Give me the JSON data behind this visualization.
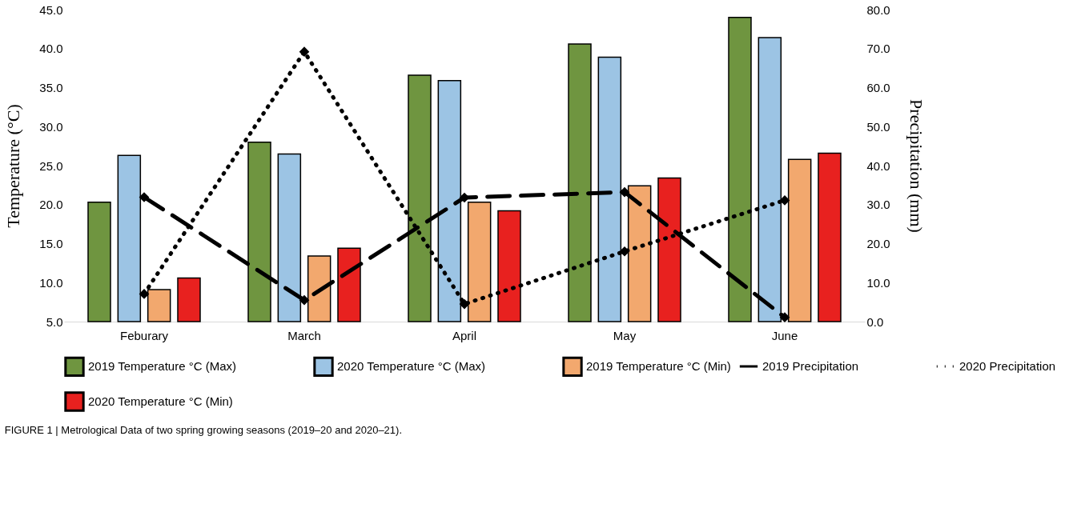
{
  "chart_data": {
    "type": "bar",
    "ylabel": "Temperature (°C)",
    "y2label": "Precipitation (mm)",
    "categories": [
      "Feburary",
      "March",
      "April",
      "May",
      "June"
    ],
    "series": [
      {
        "name": "2019 Temperature °C (Max)",
        "color": "#6f9540",
        "values": [
          20.3,
          28.0,
          36.6,
          40.6,
          44.0
        ]
      },
      {
        "name": "2020 Temperature °C (Max)",
        "color": "#9cc4e4",
        "values": [
          26.3,
          26.5,
          35.9,
          38.9,
          41.4
        ]
      },
      {
        "name": "2019 Temperature °C (Min)",
        "color": "#f2a86e",
        "values": [
          9.1,
          13.4,
          20.3,
          22.4,
          25.8
        ]
      },
      {
        "name": "2020 Temperature °C (Min)",
        "color": "#e8211f",
        "values": [
          10.6,
          14.4,
          19.2,
          23.4,
          26.6
        ]
      },
      {
        "name": "2019 Precipitation",
        "type": "line",
        "axis": "y2",
        "color": "#000000",
        "line_style": "dashed",
        "marker": "diamond",
        "values": [
          31.9,
          5.5,
          31.8,
          33.2,
          1.1
        ]
      },
      {
        "name": "2020 Precipitation",
        "type": "line",
        "axis": "y2",
        "color": "#000000",
        "line_style": "dotted",
        "marker": "diamond",
        "values": [
          7.1,
          69.2,
          4.5,
          18.0,
          31.1
        ]
      }
    ],
    "ylim": [
      5,
      45
    ],
    "yticks": [
      {
        "value": 5,
        "label": "5.0"
      },
      {
        "value": 10,
        "label": "10.0"
      },
      {
        "value": 15,
        "label": "15.0"
      },
      {
        "value": 20,
        "label": "20.0"
      },
      {
        "value": 25,
        "label": "25.0"
      },
      {
        "value": 30,
        "label": "30.0"
      },
      {
        "value": 35,
        "label": "35.0"
      },
      {
        "value": 40,
        "label": "40.0"
      },
      {
        "value": 45,
        "label": "45.0"
      }
    ],
    "y2lim": [
      0,
      80
    ],
    "y2ticks": [
      {
        "value": 0,
        "label": "0.0"
      },
      {
        "value": 10,
        "label": "10.0"
      },
      {
        "value": 20,
        "label": "20.0"
      },
      {
        "value": 30,
        "label": "30.0"
      },
      {
        "value": 40,
        "label": "40.0"
      },
      {
        "value": 50,
        "label": "50.0"
      },
      {
        "value": 60,
        "label": "60.0"
      },
      {
        "value": 70,
        "label": "70.0"
      },
      {
        "value": 80,
        "label": "80.0"
      }
    ],
    "grid": false,
    "legend": "bottom",
    "annotations": [
      "FIGURE 1 | Metrological Data of two spring growing seasons (2019–20 and 2020–21)."
    ]
  }
}
